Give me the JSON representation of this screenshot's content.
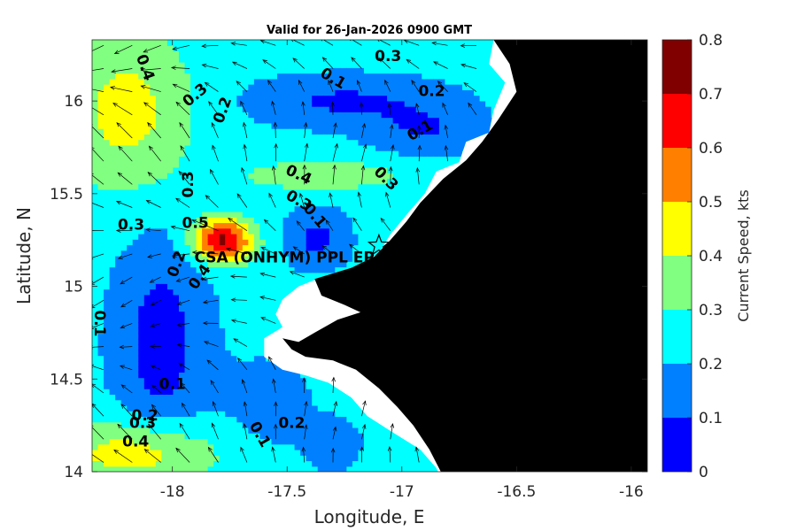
{
  "chart_data": {
    "type": "heatmap",
    "title": "Valid for 26-Jan-2026 0900 GMT",
    "xlabel": "Longitude, E",
    "ylabel": "Latitude, N",
    "xlim": [
      -18.35,
      -15.93
    ],
    "ylim": [
      14.0,
      16.33
    ],
    "xticks": [
      -18,
      -17.5,
      -17,
      -16.5,
      -16
    ],
    "xtick_labels": [
      "-18",
      "-17.5",
      "-17",
      "-16.5",
      "-16"
    ],
    "yticks": [
      14,
      14.5,
      15,
      15.5,
      16
    ],
    "ytick_labels": [
      "14",
      "14.5",
      "15",
      "15.5",
      "16"
    ],
    "colorbar": {
      "label": "Current Speed, kts",
      "range": [
        0,
        0.8
      ],
      "ticks": [
        "0",
        "0.1",
        "0.2",
        "0.3",
        "0.4",
        "0.5",
        "0.6",
        "0.7",
        "0.8"
      ],
      "bands": [
        {
          "from": 0.0,
          "to": 0.1,
          "color": "#0000ff"
        },
        {
          "from": 0.1,
          "to": 0.2,
          "color": "#0080ff"
        },
        {
          "from": 0.2,
          "to": 0.3,
          "color": "#00ffff"
        },
        {
          "from": 0.3,
          "to": 0.4,
          "color": "#80ff80"
        },
        {
          "from": 0.4,
          "to": 0.5,
          "color": "#ffff00"
        },
        {
          "from": 0.5,
          "to": 0.6,
          "color": "#ff8000"
        },
        {
          "from": 0.6,
          "to": 0.7,
          "color": "#ff0000"
        },
        {
          "from": 0.7,
          "to": 0.8,
          "color": "#800000"
        }
      ]
    },
    "land_color": "#000000",
    "contour_labels": [
      {
        "text": "0.4",
        "lon": -18.12,
        "lat": 16.18,
        "rot": 70
      },
      {
        "text": "0.3",
        "lon": -17.9,
        "lat": 16.03,
        "rot": -40
      },
      {
        "text": "0.2",
        "lon": -17.78,
        "lat": 15.95,
        "rot": -70
      },
      {
        "text": "0.1",
        "lon": -17.3,
        "lat": 16.12,
        "rot": 30
      },
      {
        "text": "0.3",
        "lon": -17.06,
        "lat": 16.24,
        "rot": 0
      },
      {
        "text": "0.2",
        "lon": -16.87,
        "lat": 16.05,
        "rot": 0
      },
      {
        "text": "0.1",
        "lon": -16.92,
        "lat": 15.84,
        "rot": -30
      },
      {
        "text": "0.3",
        "lon": -17.93,
        "lat": 15.55,
        "rot": -90
      },
      {
        "text": "0.4",
        "lon": -17.45,
        "lat": 15.6,
        "rot": 25
      },
      {
        "text": "0.3",
        "lon": -17.07,
        "lat": 15.58,
        "rot": 45
      },
      {
        "text": "0.3",
        "lon": -17.45,
        "lat": 15.46,
        "rot": 30
      },
      {
        "text": "0.1",
        "lon": -17.38,
        "lat": 15.38,
        "rot": 50
      },
      {
        "text": "0.3",
        "lon": -18.18,
        "lat": 15.33,
        "rot": 0
      },
      {
        "text": "0.5",
        "lon": -17.9,
        "lat": 15.34,
        "rot": 0
      },
      {
        "text": "0.2",
        "lon": -17.98,
        "lat": 15.12,
        "rot": -70
      },
      {
        "text": "0.4",
        "lon": -17.88,
        "lat": 15.05,
        "rot": -55
      },
      {
        "text": "0.1",
        "lon": -18.32,
        "lat": 14.8,
        "rot": 90
      },
      {
        "text": "0.1",
        "lon": -18.0,
        "lat": 14.47,
        "rot": 0
      },
      {
        "text": "0.2",
        "lon": -18.12,
        "lat": 14.3,
        "rot": 0
      },
      {
        "text": "0.3",
        "lon": -18.13,
        "lat": 14.26,
        "rot": 0
      },
      {
        "text": "0.4",
        "lon": -18.16,
        "lat": 14.16,
        "rot": 0
      },
      {
        "text": "0.2",
        "lon": -17.48,
        "lat": 14.26,
        "rot": 0
      },
      {
        "text": "0.1",
        "lon": -17.62,
        "lat": 14.2,
        "rot": 60
      }
    ],
    "station": {
      "label": "CSA (ONHYM) PPL EP",
      "lon": -17.1,
      "lat": 15.22
    }
  }
}
